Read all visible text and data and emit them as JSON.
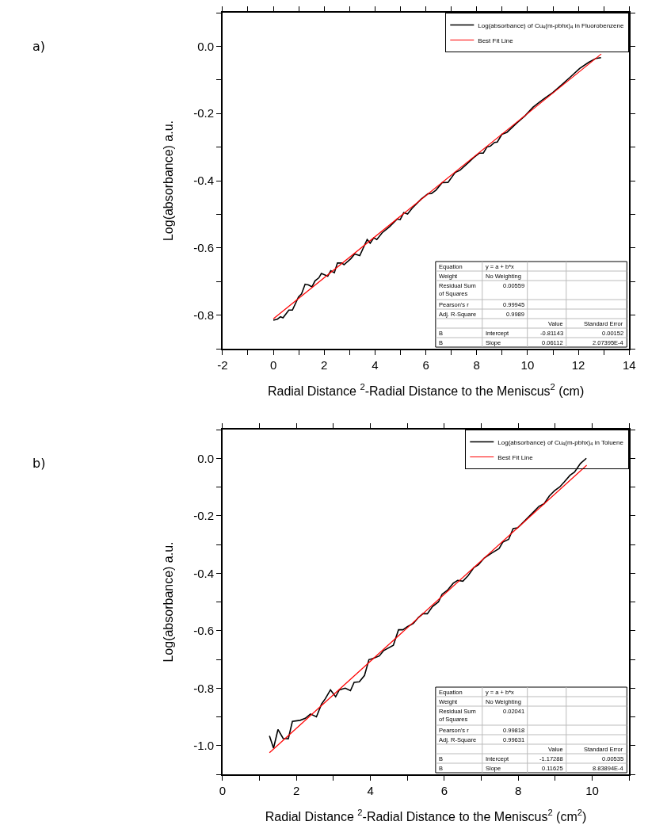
{
  "chart_data": [
    {
      "type": "line",
      "xlabel": "Radial Distance $^{2}$-Radial Distance to the Meniscus$^{2}$ (cm)",
      "ylabel": "Log(absorbance) a.u.",
      "xlim": [
        -2,
        14
      ],
      "xticks": [
        -2,
        {
          "value": -1,
          "label": null
        },
        0,
        {
          "value": 1,
          "label": null
        },
        2,
        {
          "value": 3,
          "label": null
        },
        4,
        {
          "value": 5,
          "label": null
        },
        6,
        {
          "value": 7,
          "label": null
        },
        8,
        {
          "value": 9,
          "label": null
        },
        10,
        {
          "value": 11,
          "label": null
        },
        12,
        {
          "value": 13,
          "label": null
        },
        14
      ],
      "ylim": [
        -0.9,
        0.1
      ],
      "yticks": [
        {
          "value": -0.9,
          "label": null
        },
        {
          "value": -0.8,
          "label": "-0.8"
        },
        {
          "value": -0.7,
          "label": null
        },
        {
          "value": -0.6,
          "label": "-0.6"
        },
        {
          "value": -0.5,
          "label": null
        },
        {
          "value": -0.4,
          "label": "-0.4"
        },
        {
          "value": -0.3,
          "label": null
        },
        {
          "value": -0.2,
          "label": "-0.2"
        },
        {
          "value": -0.1,
          "label": null
        },
        {
          "value": 0,
          "label": "0.0"
        },
        {
          "value": 0.1,
          "label": null
        }
      ],
      "grid": false,
      "legend": "top right",
      "marker": "none",
      "line_style": "solid",
      "series": [
        {
          "name": "Log(absorbance) of Cu$_{4}$(m-pbhx)$_{4}$ in Fluorobenzene",
          "color": "#000000",
          "x": [
            0,
            0.16,
            0.28,
            0.38,
            0.61,
            0.75,
            0.99,
            1.11,
            1.25,
            1.38,
            1.52,
            1.64,
            1.79,
            1.89,
            2.14,
            2.26,
            2.4,
            2.52,
            2.69,
            2.78,
            3.05,
            3.2,
            3.4,
            3.69,
            3.81,
            3.95,
            4.07,
            4.28,
            4.57,
            4.87,
            4.99,
            5.13,
            5.28,
            5.46,
            5.81,
            6.08,
            6.22,
            6.4,
            6.64,
            6.87,
            7.16,
            7.34,
            7.69,
            7.87,
            8.11,
            8.26,
            8.4,
            8.54,
            8.7,
            8.81,
            8.99,
            9.19,
            9.58,
            9.9,
            10.22,
            10.49,
            10.69,
            10.99,
            11.34,
            11.69,
            12.05,
            12.4,
            12.69,
            12.89
          ],
          "values": [
            -0.815,
            -0.812,
            -0.805,
            -0.808,
            -0.785,
            -0.785,
            -0.746,
            -0.737,
            -0.708,
            -0.71,
            -0.716,
            -0.698,
            -0.689,
            -0.676,
            -0.684,
            -0.668,
            -0.674,
            -0.645,
            -0.645,
            -0.65,
            -0.632,
            -0.618,
            -0.623,
            -0.575,
            -0.586,
            -0.57,
            -0.575,
            -0.555,
            -0.537,
            -0.514,
            -0.516,
            -0.495,
            -0.499,
            -0.482,
            -0.455,
            -0.439,
            -0.438,
            -0.428,
            -0.406,
            -0.405,
            -0.375,
            -0.369,
            -0.345,
            -0.332,
            -0.318,
            -0.318,
            -0.3,
            -0.297,
            -0.286,
            -0.285,
            -0.262,
            -0.256,
            -0.228,
            -0.207,
            -0.181,
            -0.165,
            -0.154,
            -0.138,
            -0.115,
            -0.091,
            -0.066,
            -0.048,
            -0.036,
            -0.034
          ]
        },
        {
          "name": "Best Fit Line",
          "color": "#ff0000",
          "x": [
            0,
            12.9
          ],
          "values": [
            -0.811,
            -0.023
          ]
        }
      ],
      "annotations": [
        "a)",
        "Equation",
        "y = a + b*x",
        "Weight",
        "No Weighting",
        "Residual Sum\nof Squares",
        "0.00559",
        "Pearson's r",
        "0.99945",
        "Adj. R-Square",
        "0.9989",
        "Value",
        "Standard Error",
        "B",
        "Intercept",
        "-0.81143",
        "0.00152",
        "B",
        "Slope",
        "0.06112",
        "2.07395E-4"
      ]
    },
    {
      "type": "line",
      "xlabel": "Radial Distance $^{2}$-Radial Distance to the Meniscus$^{2}$ (cm$^{2}$)",
      "ylabel": "Log(absorbance) a.u.",
      "xlim": [
        0,
        11
      ],
      "xticks": [
        0,
        {
          "value": 1,
          "label": null
        },
        2,
        {
          "value": 3,
          "label": null
        },
        4,
        {
          "value": 5,
          "label": null
        },
        6,
        {
          "value": 7,
          "label": null
        },
        8,
        {
          "value": 9,
          "label": null
        },
        10,
        {
          "value": 11,
          "label": null
        }
      ],
      "ylim": [
        -1.1,
        0.1
      ],
      "yticks": [
        {
          "value": -1.1,
          "label": null
        },
        {
          "value": -1.0,
          "label": "-1.0"
        },
        {
          "value": -0.9,
          "label": null
        },
        {
          "value": -0.8,
          "label": "-0.8"
        },
        {
          "value": -0.7,
          "label": null
        },
        {
          "value": -0.6,
          "label": "-0.6"
        },
        {
          "value": -0.5,
          "label": null
        },
        {
          "value": -0.4,
          "label": "-0.4"
        },
        {
          "value": -0.3,
          "label": null
        },
        {
          "value": -0.2,
          "label": "-0.2"
        },
        {
          "value": -0.1,
          "label": null
        },
        {
          "value": 0,
          "label": "0.0"
        },
        {
          "value": 0.1,
          "label": null
        }
      ],
      "grid": false,
      "legend": "top right",
      "marker": "none",
      "line_style": "solid",
      "series": [
        {
          "name": "Log(absorbance) of Cu$_{4}$(m-pbhx)$_{4}$ in Toluene",
          "color": "#000000",
          "x": [
            1.27,
            1.38,
            1.5,
            1.64,
            1.78,
            1.89,
            2.1,
            2.24,
            2.38,
            2.54,
            2.68,
            2.78,
            2.92,
            3.06,
            3.16,
            3.32,
            3.46,
            3.56,
            3.7,
            3.84,
            3.96,
            4.06,
            4.24,
            4.36,
            4.62,
            4.76,
            4.88,
            5.0,
            5.16,
            5.3,
            5.42,
            5.54,
            5.68,
            5.84,
            5.94,
            6.08,
            6.24,
            6.36,
            6.5,
            6.64,
            6.8,
            6.92,
            7.08,
            7.28,
            7.48,
            7.58,
            7.74,
            7.86,
            7.98,
            8.18,
            8.44,
            8.56,
            8.7,
            8.84,
            8.98,
            9.12,
            9.24,
            9.4,
            9.52,
            9.68,
            9.84
          ],
          "values": [
            -0.966,
            -1.009,
            -0.944,
            -0.975,
            -0.976,
            -0.916,
            -0.912,
            -0.905,
            -0.89,
            -0.9,
            -0.855,
            -0.837,
            -0.806,
            -0.83,
            -0.806,
            -0.8,
            -0.809,
            -0.78,
            -0.778,
            -0.756,
            -0.701,
            -0.697,
            -0.688,
            -0.669,
            -0.651,
            -0.597,
            -0.597,
            -0.586,
            -0.575,
            -0.554,
            -0.541,
            -0.541,
            -0.516,
            -0.5,
            -0.473,
            -0.46,
            -0.435,
            -0.425,
            -0.428,
            -0.409,
            -0.38,
            -0.371,
            -0.347,
            -0.33,
            -0.314,
            -0.292,
            -0.282,
            -0.245,
            -0.242,
            -0.217,
            -0.183,
            -0.167,
            -0.158,
            -0.131,
            -0.113,
            -0.1,
            -0.083,
            -0.059,
            -0.048,
            -0.018,
            0.0
          ]
        },
        {
          "name": "Best Fit Line",
          "color": "#ff0000",
          "x": [
            1.27,
            9.85
          ],
          "values": [
            -1.025,
            -0.024
          ]
        }
      ],
      "annotations": [
        "b)",
        "Equation",
        "y = a + b*x",
        "Weight",
        "No Weighting",
        "Residual Sum\nof Squares",
        "0.02041",
        "Pearson's r",
        "0.99818",
        "Adj. R-Square",
        "0.99631",
        "Value",
        "Standard Error",
        "B",
        "Intercept",
        "-1.17288",
        "0.00535",
        "B",
        "Slope",
        "0.11625",
        "8.83894E-4"
      ]
    }
  ]
}
